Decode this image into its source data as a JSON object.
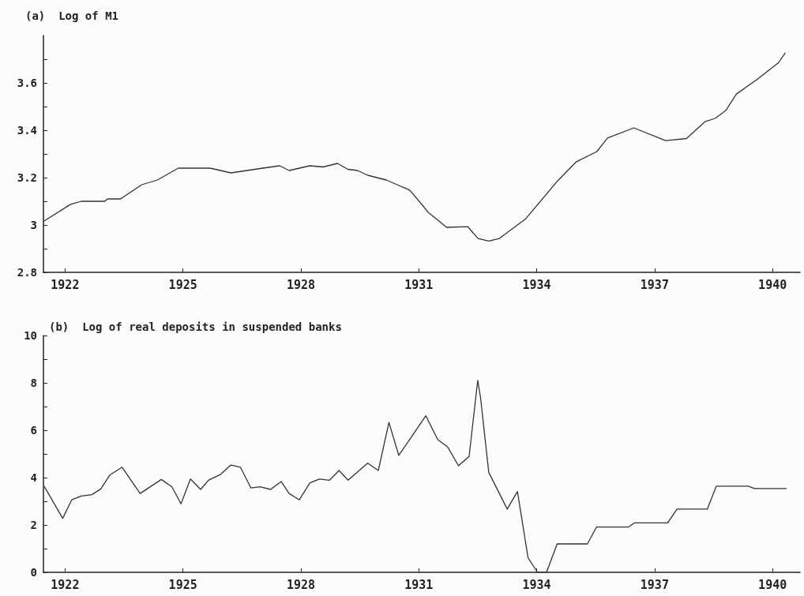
{
  "chart_data": [
    {
      "type": "line",
      "title": "(a)  Log of M1",
      "xlim": [
        1921.45,
        1940.7
      ],
      "xticks": [
        1922,
        1925,
        1928,
        1931,
        1934,
        1937,
        1940
      ],
      "ylim": [
        2.8,
        3.8
      ],
      "yticks": [
        2.8,
        {
          "value": 2.9,
          "label": null
        },
        3,
        {
          "value": 3.1,
          "label": null
        },
        3.2,
        {
          "value": 3.3,
          "label": null
        },
        3.4,
        {
          "value": 3.5,
          "label": null
        },
        3.6,
        {
          "value": 3.7,
          "label": null
        }
      ],
      "grid": false,
      "marker": "none",
      "line_style": "solid",
      "series": [
        {
          "color": "#333333",
          "x": [
            1921.45,
            1922.14,
            1922.41,
            1923.01,
            1923.08,
            1923.41,
            1923.95,
            1924.35,
            1924.88,
            1925.69,
            1926.22,
            1926.63,
            1927.03,
            1927.46,
            1927.7,
            1928.23,
            1928.57,
            1928.93,
            1929.2,
            1929.44,
            1929.7,
            1930.17,
            1930.77,
            1931.11,
            1931.24,
            1931.71,
            1932.25,
            1932.31,
            1932.51,
            1932.78,
            1933.05,
            1933.72,
            1934.53,
            1935.0,
            1935.53,
            1935.8,
            1936.47,
            1937.28,
            1937.81,
            1938.28,
            1938.54,
            1938.81,
            1939.08,
            1939.61,
            1940.15,
            1940.32
          ],
          "values": [
            3.015,
            3.087,
            3.1,
            3.1,
            3.11,
            3.11,
            3.17,
            3.19,
            3.24,
            3.24,
            3.22,
            3.23,
            3.24,
            3.25,
            3.23,
            3.25,
            3.245,
            3.26,
            3.235,
            3.23,
            3.21,
            3.19,
            3.147,
            3.08,
            3.053,
            2.99,
            2.993,
            2.98,
            2.943,
            2.932,
            2.943,
            3.026,
            3.186,
            3.266,
            3.31,
            3.367,
            3.41,
            3.356,
            3.365,
            3.436,
            3.45,
            3.483,
            3.553,
            3.615,
            3.685,
            3.726
          ]
        }
      ]
    },
    {
      "type": "line",
      "title": "(b)  Log of real deposits in suspended banks",
      "xlim": [
        1921.45,
        1940.7
      ],
      "xticks": [
        1922,
        1925,
        1928,
        1931,
        1934,
        1937,
        1940
      ],
      "ylim": [
        0,
        10
      ],
      "yticks": [
        0,
        {
          "value": 1,
          "label": null
        },
        2,
        {
          "value": 3,
          "label": null
        },
        4,
        {
          "value": 5,
          "label": null
        },
        6,
        {
          "value": 7,
          "label": null
        },
        8,
        {
          "value": 9,
          "label": null
        },
        10
      ],
      "grid": false,
      "marker": "none",
      "line_style": "solid",
      "series": [
        {
          "color": "#333333",
          "x": [
            1921.47,
            1921.94,
            1922.17,
            1922.41,
            1922.68,
            1922.91,
            1923.14,
            1923.45,
            1923.91,
            1924.45,
            1924.72,
            1924.95,
            1925.19,
            1925.45,
            1925.65,
            1925.96,
            1926.22,
            1926.46,
            1926.73,
            1926.96,
            1927.23,
            1927.5,
            1927.7,
            1927.96,
            1928.23,
            1928.47,
            1928.73,
            1928.97,
            1929.2,
            1929.7,
            1929.97,
            1930.24,
            1930.49,
            1930.77,
            1931.18,
            1931.48,
            1931.74,
            1932.01,
            1932.28,
            1932.45,
            1932.5,
            1932.57,
            1932.78,
            1933.25,
            1933.51,
            1933.78,
            1934.02,
            1934.25,
            1934.52,
            1935.29,
            1935.52,
            1936.33,
            1936.49,
            1937.33,
            1937.57,
            1938.34,
            1938.57,
            1939.38,
            1939.54,
            1940.35
          ],
          "values": [
            3.63,
            2.28,
            3.06,
            3.22,
            3.28,
            3.52,
            4.11,
            4.44,
            3.33,
            3.92,
            3.61,
            2.89,
            3.94,
            3.5,
            3.89,
            4.14,
            4.53,
            4.44,
            3.56,
            3.61,
            3.5,
            3.83,
            3.33,
            3.06,
            3.78,
            3.94,
            3.89,
            4.3,
            3.89,
            4.61,
            4.3,
            6.33,
            4.94,
            5.61,
            6.61,
            5.61,
            5.28,
            4.5,
            4.89,
            7.39,
            8.1,
            7.39,
            4.22,
            2.67,
            3.41,
            0.61,
            0,
            0,
            1.2,
            1.2,
            1.91,
            1.91,
            2.09,
            2.09,
            2.67,
            2.67,
            3.64,
            3.64,
            3.54,
            3.54
          ]
        }
      ]
    }
  ]
}
